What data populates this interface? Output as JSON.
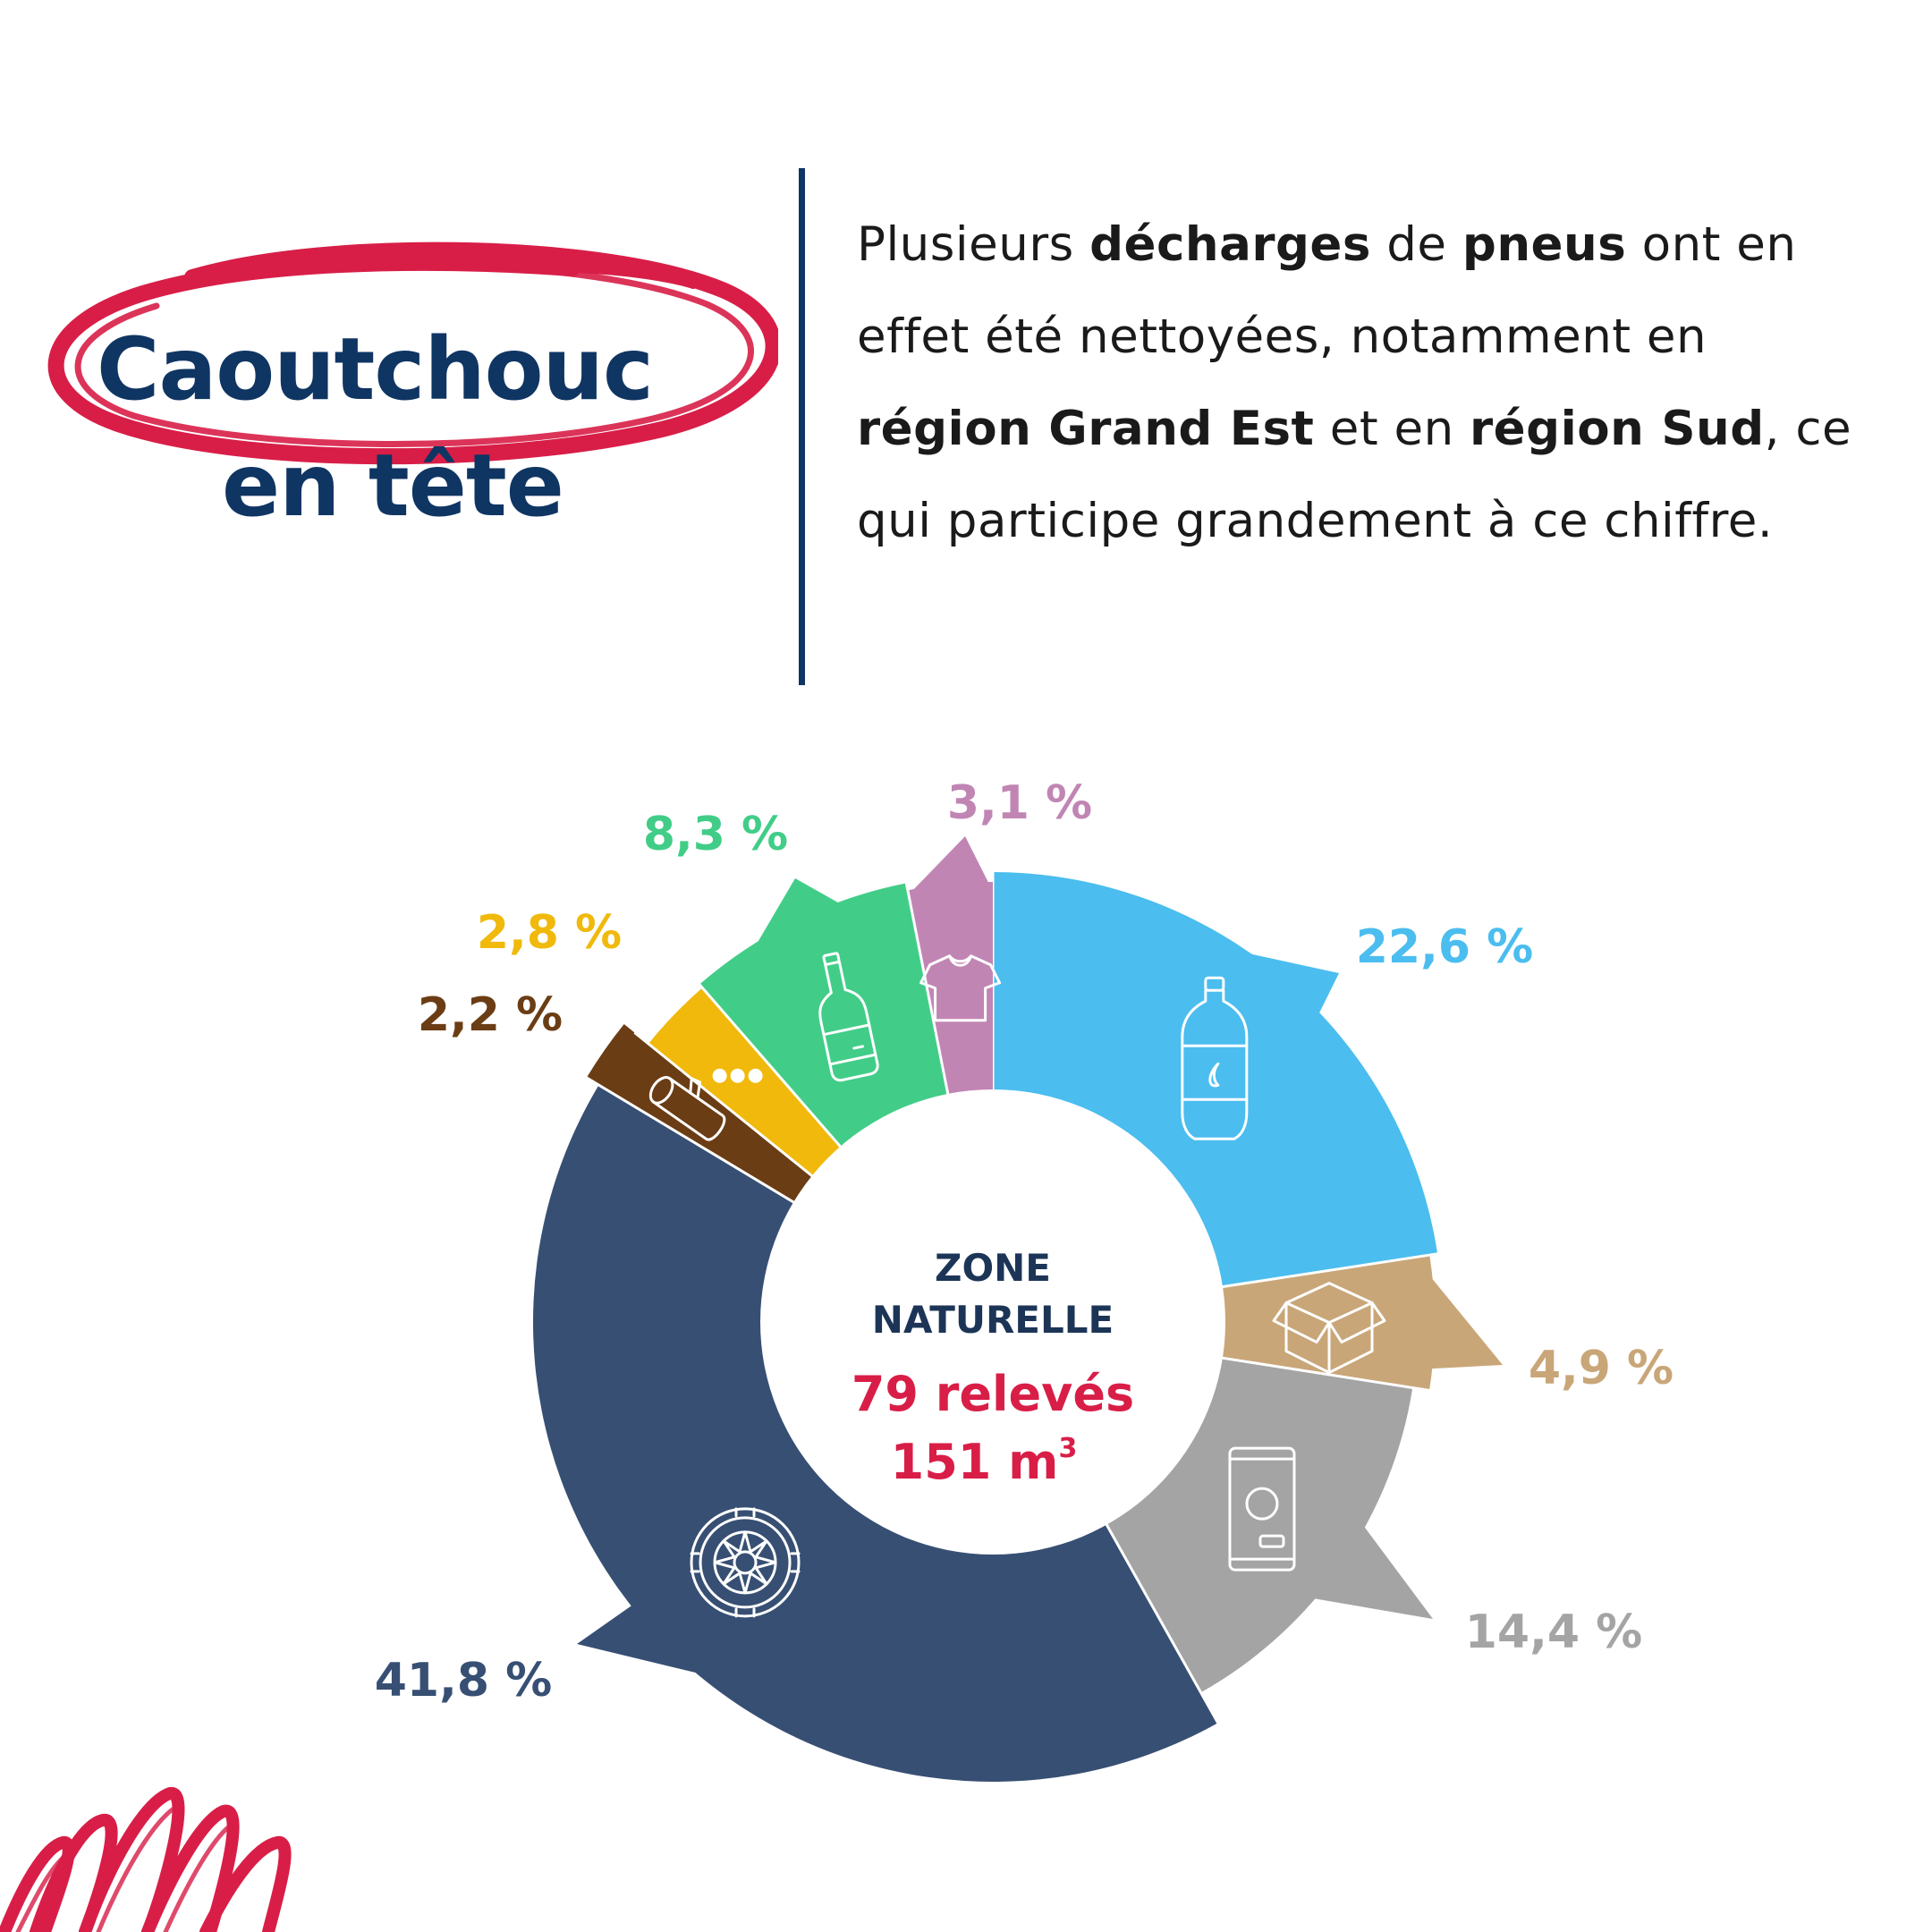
{
  "title": {
    "line1": "Caoutchouc",
    "line2": "en tête"
  },
  "intro": {
    "segments": [
      {
        "text": "Plusieurs ",
        "bold": false
      },
      {
        "text": "décharges",
        "bold": true
      },
      {
        "text": " de ",
        "bold": false
      },
      {
        "text": "pneus",
        "bold": true
      },
      {
        "text": " ont en effet été nettoyées, notamment en ",
        "bold": false
      },
      {
        "text": "région Grand Est",
        "bold": true
      },
      {
        "text": " et en ",
        "bold": false
      },
      {
        "text": "région Sud",
        "bold": true
      },
      {
        "text": ", ce qui participe grandement à ce chiffre.",
        "bold": false
      }
    ]
  },
  "colors": {
    "navy": "#0f3563",
    "brand_red": "#d81e47"
  },
  "chart_data": {
    "type": "pie",
    "variant": "donut",
    "center": {
      "line1": "ZONE",
      "line2": "NATURELLE",
      "count": "79 relevés",
      "volume_number": "151 m",
      "volume_exponent": "3"
    },
    "slices": [
      {
        "label": "22,6 %",
        "value": 22.6,
        "color": "#4bbdef",
        "label_color": "#4bbdef",
        "icon": "plastic-bottle-icon"
      },
      {
        "label": "4,9 %",
        "value": 4.9,
        "color": "#c9a678",
        "label_color": "#c9a678",
        "icon": "cardboard-box-icon"
      },
      {
        "label": "14,4 %",
        "value": 14.4,
        "color": "#a4a4a4",
        "label_color": "#a4a4a4",
        "icon": "can-icon"
      },
      {
        "label": "41,8 %",
        "value": 41.8,
        "color": "#374f73",
        "label_color": "#374f73",
        "icon": "tire-icon"
      },
      {
        "label": "2,2 %",
        "value": 2.2,
        "color": "#6b3d14",
        "label_color": "#6b3d14",
        "icon": "wood-log-icon"
      },
      {
        "label": "2,8 %",
        "value": 2.8,
        "color": "#f0b90b",
        "label_color": "#f0b90b",
        "icon": "other-dots-icon"
      },
      {
        "label": "8,3 %",
        "value": 8.3,
        "color": "#41cd88",
        "label_color": "#41cd88",
        "icon": "glass-bottle-icon"
      },
      {
        "label": "3,1 %",
        "value": 3.1,
        "color": "#c185b4",
        "label_color": "#c185b4",
        "icon": "tshirt-icon"
      }
    ]
  }
}
